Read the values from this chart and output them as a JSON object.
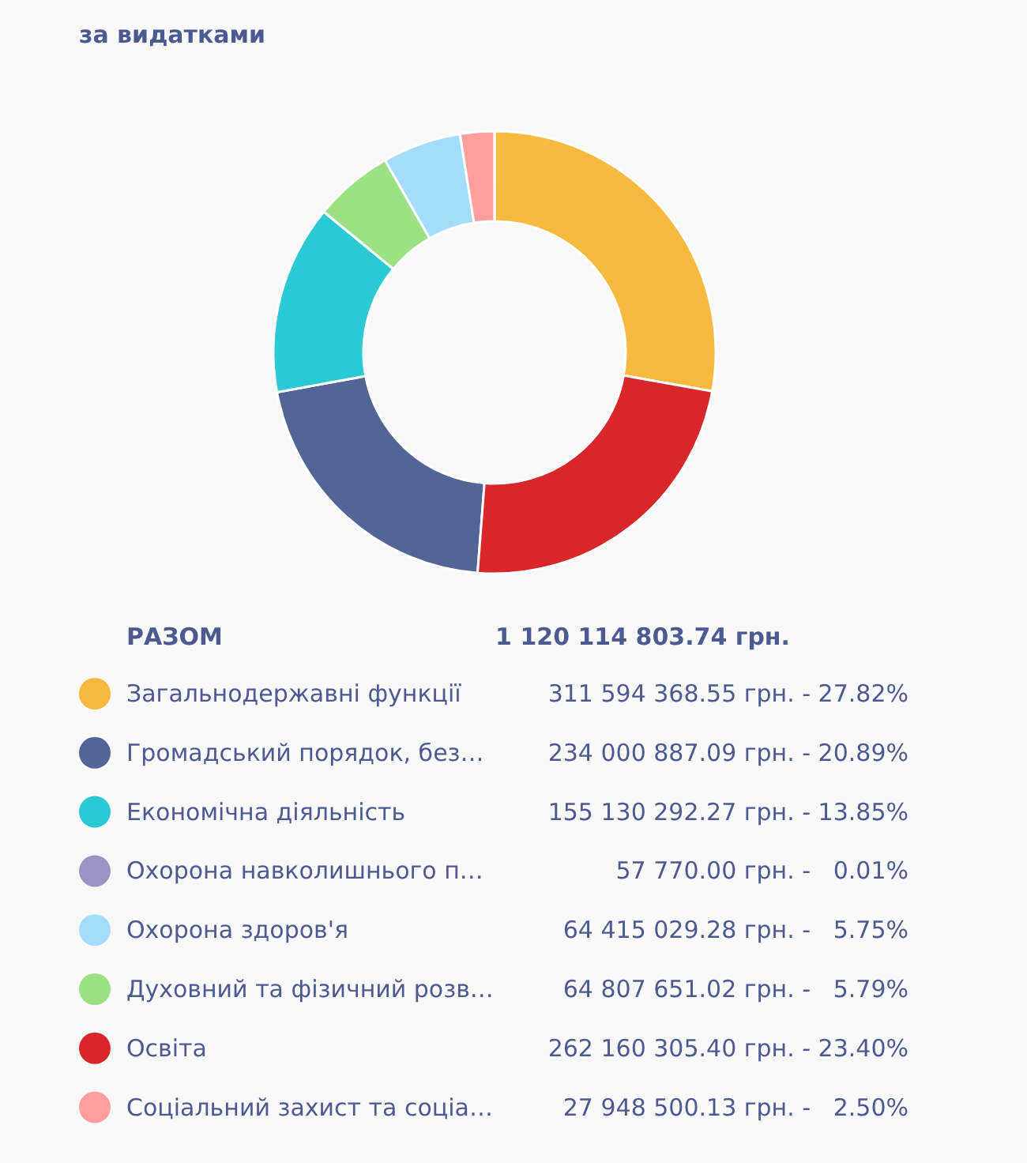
{
  "chart_data": {
    "type": "donut",
    "title": "за видатками",
    "categories": [
      "Загальнодержавні функції",
      "Громадський порядок, без…",
      "Економічна діяльність",
      "Охорона навколишнього п…",
      "Охорона здоров'я",
      "Духовний та фізичний розв…",
      "Освіта",
      "Соціальний захист та соціа…"
    ],
    "values": [
      311594368.55,
      234000887.09,
      155130292.27,
      57770.0,
      64415029.28,
      64807651.02,
      262160305.4,
      27948500.13
    ],
    "colors": [
      "#f7b93e",
      "#536497",
      "#2bc9d4",
      "#9b94c5",
      "#a4dcfb",
      "#9ce183",
      "#d9262a",
      "#ff9e9e"
    ],
    "value_labels": [
      "311 594 368.55 грн. - 27.82%",
      "234 000 887.09 грн. - 20.89%",
      "155 130 292.27 грн. - 13.85%",
      "57 770.00 грн. -   0.01%",
      "64 415 029.28 грн. -   5.75%",
      "64 807 651.02 грн. -   5.79%",
      "262 160 305.40 грн. - 23.40%",
      "27 948 500.13 грн. -   2.50%"
    ],
    "annotations": [
      "РАЗОМ",
      "1 120 114 803.74 грн."
    ],
    "legend": "bottom"
  }
}
